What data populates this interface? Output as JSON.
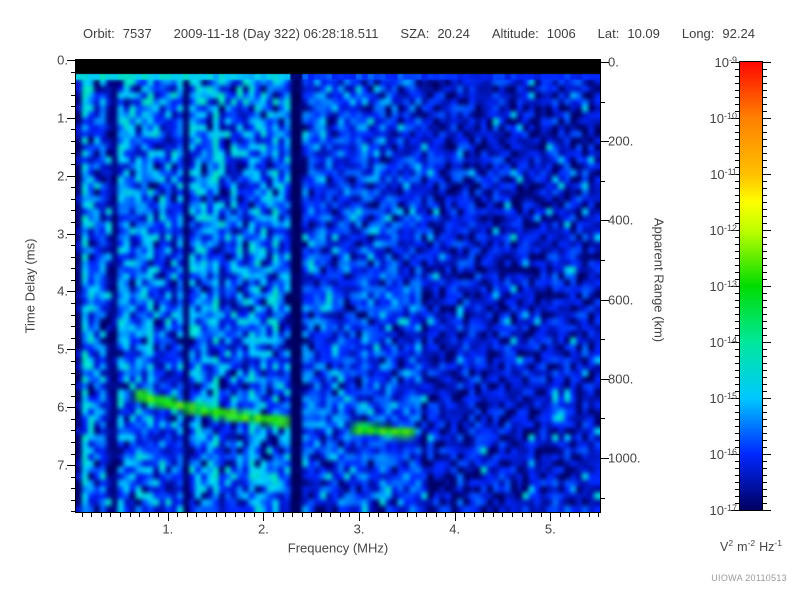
{
  "header": {
    "fields": [
      {
        "label": "Orbit:",
        "value": "7537"
      },
      {
        "label": "",
        "value": "2009-11-18 (Day 322) 06:28:18.511"
      },
      {
        "label": "SZA:",
        "value": "20.24"
      },
      {
        "label": "Altitude:",
        "value": "1006"
      },
      {
        "label": "Lat:",
        "value": "10.09"
      },
      {
        "label": "Long:",
        "value": "92.24"
      }
    ]
  },
  "watermark": "UIOWA 20110513",
  "chart_data": {
    "type": "heatmap",
    "description": "Radar sounder ionogram: received spectral power versus sounding frequency and echo time delay",
    "xlabel": "Frequency (MHz)",
    "ylabel": "Time Delay (ms)",
    "y2label": "Apparent Range (km)",
    "xlim": [
      0.04,
      5.52
    ],
    "ylim": [
      0,
      7.81
    ],
    "y2lim": [
      0,
      1140
    ],
    "xticks": [
      1,
      2,
      3,
      4,
      5
    ],
    "xtick_labels": [
      "1.",
      "2.",
      "3.",
      "4.",
      "5."
    ],
    "x_minor_step": 0.1,
    "yticks": [
      0,
      1,
      2,
      3,
      4,
      5,
      6,
      7
    ],
    "ytick_labels": [
      "0.",
      "1.",
      "2.",
      "3.",
      "4.",
      "5.",
      "6.",
      "7."
    ],
    "y_minor_step": 0.2,
    "y2ticks": [
      0,
      200,
      400,
      600,
      800,
      1000
    ],
    "y2tick_labels": [
      "0.",
      "200.",
      "400.",
      "600.",
      "800.",
      "1000."
    ],
    "y2_minor_step": 100,
    "grid": false,
    "colorbar": {
      "scale": "log",
      "exponents": [
        -9,
        -10,
        -11,
        -12,
        -13,
        -14,
        -15,
        -16,
        -17
      ],
      "units_parts": [
        {
          "base": "V",
          "exp": "2"
        },
        {
          "base": "m",
          "exp": "-2"
        },
        {
          "base": "Hz",
          "exp": "-1"
        }
      ],
      "stops": [
        [
          0,
          "#000060"
        ],
        [
          0.125,
          "#0028ff"
        ],
        [
          0.25,
          "#00c8ff"
        ],
        [
          0.375,
          "#00e89c"
        ],
        [
          0.5,
          "#00dc00"
        ],
        [
          0.625,
          "#c0ff00"
        ],
        [
          0.6875,
          "#ffff00"
        ],
        [
          0.75,
          "#ffc000"
        ],
        [
          0.875,
          "#ff8000"
        ],
        [
          1,
          "#ff0800"
        ]
      ]
    },
    "features": {
      "transmit_blank": {
        "t_range_ms": [
          0,
          0.23
        ],
        "level": "black"
      },
      "first_return_line": {
        "t_ms": 0.28,
        "level_frac": 0.27
      },
      "interference_null": {
        "f_range_mhz": [
          2.26,
          2.4
        ],
        "level": "black"
      },
      "echo_trace": {
        "level_frac": 0.52,
        "segments": [
          {
            "points_f_t": [
              [
                0.72,
                5.8
              ],
              [
                0.82,
                5.86
              ],
              [
                0.92,
                5.9
              ],
              [
                1.02,
                5.94
              ],
              [
                1.12,
                5.98
              ],
              [
                1.25,
                6.02
              ],
              [
                1.38,
                6.06
              ],
              [
                1.52,
                6.1
              ],
              [
                1.66,
                6.13
              ],
              [
                1.8,
                6.17
              ],
              [
                1.95,
                6.2
              ],
              [
                2.08,
                6.22
              ],
              [
                2.2,
                6.25
              ]
            ]
          },
          {
            "points_f_t": [
              [
                3.0,
                6.38
              ],
              [
                3.12,
                6.39
              ],
              [
                3.25,
                6.41
              ],
              [
                3.38,
                6.43
              ],
              [
                3.5,
                6.44
              ]
            ]
          }
        ]
      },
      "noise_regions": [
        {
          "f_range": [
            0.04,
            0.25
          ],
          "mean": 0.17,
          "stripe": 1.0,
          "col_black_prob": 0.25,
          "bright_prob": 0.28,
          "cell_black_prob": 0.05,
          "line_level": 0.27
        },
        {
          "f_range": [
            0.25,
            0.48
          ],
          "mean": 0.13,
          "stripe": 1.0,
          "col_black_prob": 0.45,
          "bright_prob": 0.12,
          "cell_black_prob": 0.1,
          "line_level": 0.27
        },
        {
          "f_range": [
            0.48,
            2.26
          ],
          "mean": 0.16,
          "stripe": 0.55,
          "col_black_prob": 0.03,
          "bright_prob": 0.2,
          "cell_black_prob": 0.07,
          "line_level": 0.27
        },
        {
          "f_range": [
            2.26,
            2.4
          ],
          "mean": 0.012,
          "stripe": 0,
          "col_black_prob": 0,
          "bright_prob": 0,
          "cell_black_prob": 0.5,
          "line_level": 0.02
        },
        {
          "f_range": [
            2.4,
            3.65
          ],
          "mean": 0.135,
          "stripe": 0.2,
          "col_black_prob": 0,
          "bright_prob": 0.09,
          "cell_black_prob": 0.09,
          "line_level": 0.14
        },
        {
          "f_range": [
            3.65,
            5.52
          ],
          "mean": 0.105,
          "stripe": 0.15,
          "col_black_prob": 0,
          "bright_prob": 0.04,
          "cell_black_prob": 0.22,
          "line_level": 0.12
        }
      ]
    }
  }
}
